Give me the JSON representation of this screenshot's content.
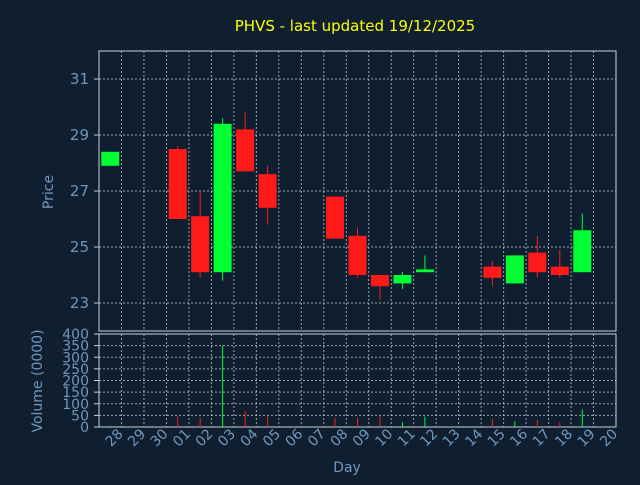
{
  "chart_data": [
    {
      "type": "candlestick",
      "title": "PHVS - last updated 19/12/2025",
      "ylabel": "Price",
      "ylim": [
        22,
        32
      ],
      "yticks": [
        23,
        25,
        27,
        29,
        31
      ],
      "categories": [
        "28",
        "29",
        "30",
        "01",
        "02",
        "03",
        "04",
        "05",
        "06",
        "07",
        "08",
        "09",
        "10",
        "11",
        "12",
        "13",
        "14",
        "15",
        "16",
        "17",
        "18",
        "19",
        "20"
      ],
      "up_color": "#00ff33",
      "down_color": "#ff1a1a",
      "candles": [
        {
          "x": "28",
          "open": 27.9,
          "close": 28.4,
          "high": 28.4,
          "low": 27.9
        },
        {
          "x": "01",
          "open": 28.5,
          "close": 26.0,
          "high": 28.6,
          "low": 26.0
        },
        {
          "x": "02",
          "open": 26.1,
          "close": 24.1,
          "high": 27.0,
          "low": 23.9
        },
        {
          "x": "03",
          "open": 24.1,
          "close": 29.4,
          "high": 29.6,
          "low": 23.8
        },
        {
          "x": "04",
          "open": 29.2,
          "close": 27.7,
          "high": 29.8,
          "low": 27.7
        },
        {
          "x": "05",
          "open": 27.6,
          "close": 26.4,
          "high": 27.9,
          "low": 25.8
        },
        {
          "x": "08",
          "open": 26.8,
          "close": 25.3,
          "high": 26.8,
          "low": 25.3
        },
        {
          "x": "09",
          "open": 25.4,
          "close": 24.0,
          "high": 25.7,
          "low": 23.9
        },
        {
          "x": "10",
          "open": 24.0,
          "close": 23.6,
          "high": 24.0,
          "low": 23.1
        },
        {
          "x": "11",
          "open": 23.7,
          "close": 24.0,
          "high": 24.1,
          "low": 23.5
        },
        {
          "x": "12",
          "open": 24.1,
          "close": 24.2,
          "high": 24.7,
          "low": 24.1
        },
        {
          "x": "15",
          "open": 24.3,
          "close": 23.9,
          "high": 24.5,
          "low": 23.6
        },
        {
          "x": "16",
          "open": 23.7,
          "close": 24.7,
          "high": 24.7,
          "low": 23.7
        },
        {
          "x": "17",
          "open": 24.8,
          "close": 24.1,
          "high": 25.4,
          "low": 23.9
        },
        {
          "x": "18",
          "open": 24.3,
          "close": 24.0,
          "high": 24.9,
          "low": 23.9
        },
        {
          "x": "19",
          "open": 24.1,
          "close": 25.6,
          "high": 26.2,
          "low": 24.1
        }
      ]
    },
    {
      "type": "bar",
      "title": "",
      "xlabel": "Day",
      "ylabel": "Volume (0000)",
      "ylim": [
        0,
        400
      ],
      "yticks": [
        0,
        50,
        100,
        150,
        200,
        250,
        300,
        350,
        400
      ],
      "categories": [
        "28",
        "29",
        "30",
        "01",
        "02",
        "03",
        "04",
        "05",
        "06",
        "07",
        "08",
        "09",
        "10",
        "11",
        "12",
        "13",
        "14",
        "15",
        "16",
        "17",
        "18",
        "19",
        "20"
      ],
      "bars": [
        {
          "x": "28",
          "value": 5,
          "direction": "up"
        },
        {
          "x": "01",
          "value": 45,
          "direction": "down"
        },
        {
          "x": "02",
          "value": 40,
          "direction": "down"
        },
        {
          "x": "03",
          "value": 350,
          "direction": "up"
        },
        {
          "x": "04",
          "value": 70,
          "direction": "down"
        },
        {
          "x": "05",
          "value": 45,
          "direction": "down"
        },
        {
          "x": "08",
          "value": 40,
          "direction": "down"
        },
        {
          "x": "09",
          "value": 40,
          "direction": "down"
        },
        {
          "x": "10",
          "value": 45,
          "direction": "down"
        },
        {
          "x": "11",
          "value": 20,
          "direction": "up"
        },
        {
          "x": "12",
          "value": 45,
          "direction": "up"
        },
        {
          "x": "15",
          "value": 35,
          "direction": "down"
        },
        {
          "x": "16",
          "value": 25,
          "direction": "up"
        },
        {
          "x": "17",
          "value": 30,
          "direction": "down"
        },
        {
          "x": "18",
          "value": 20,
          "direction": "down"
        },
        {
          "x": "19",
          "value": 75,
          "direction": "up"
        }
      ]
    }
  ]
}
